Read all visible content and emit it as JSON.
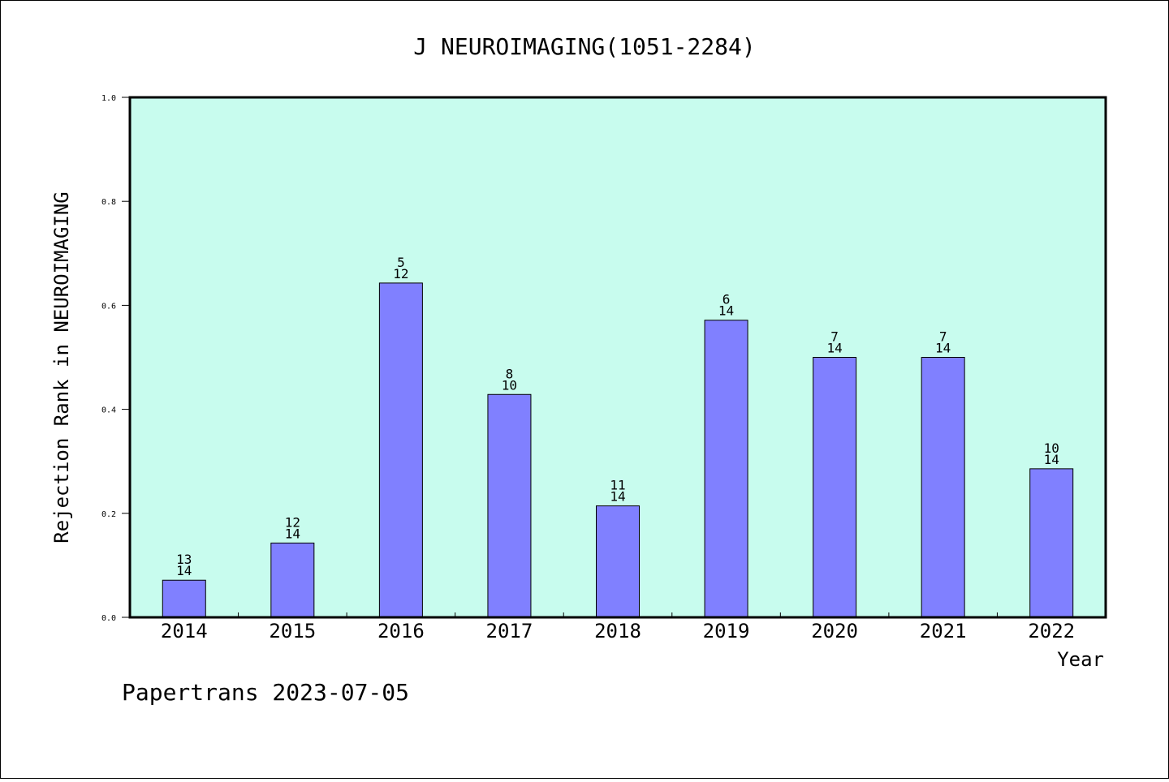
{
  "chart_data": {
    "type": "bar",
    "title": "J NEUROIMAGING(1051-2284)",
    "xlabel": "Year",
    "ylabel": "Rejection Rank in NEUROIMAGING",
    "categories": [
      "2014",
      "2015",
      "2016",
      "2017",
      "2018",
      "2019",
      "2020",
      "2021",
      "2022"
    ],
    "values": [
      0.0714,
      0.1429,
      0.6429,
      0.4286,
      0.2143,
      0.5714,
      0.5,
      0.5,
      0.2857
    ],
    "labels_top": [
      "13",
      "12",
      "5",
      "8",
      "11",
      "6",
      "7",
      "7",
      "10"
    ],
    "labels_bottom": [
      "14",
      "14",
      "12",
      "10",
      "14",
      "14",
      "14",
      "14",
      "14"
    ],
    "ylim": [
      0,
      1.0
    ],
    "yticks": [
      "0.0",
      "0.2",
      "0.4",
      "0.6",
      "0.8",
      "1.0"
    ],
    "grid": false,
    "colors": {
      "plot_background": "#c8fcee",
      "bar_fill": "#8080ff",
      "bar_stroke": "#000000"
    }
  },
  "footer": {
    "text": "Papertrans 2023-07-05"
  }
}
